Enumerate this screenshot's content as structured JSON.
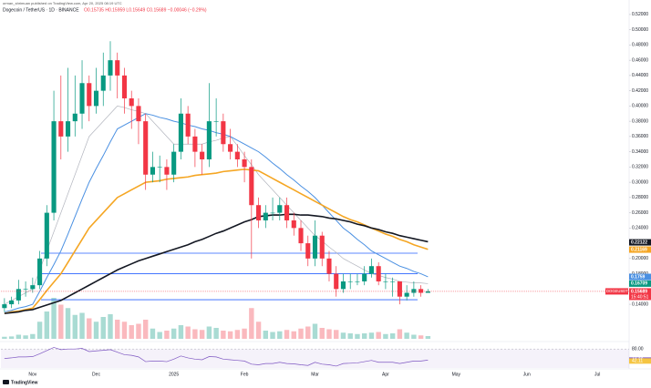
{
  "header": {
    "publisher": "orman_shrimuan published on TradingView.com, Apr 20, 2025 08:19 UTC",
    "symbol": "Dogecoin / TetherUS · 1D · BINANCE",
    "ohlc": "O0.15735 H0.15959 L0.15649 C0.15689 −0.00046 (−0.29%)"
  },
  "footer": {
    "brand": "TradingView"
  },
  "chart_data": {
    "type": "candlestick",
    "categories": [
      null,
      null,
      null,
      null,
      "Nov",
      null,
      null,
      null,
      null,
      null,
      null,
      null,
      null,
      "Dec",
      null,
      null,
      null,
      null,
      null,
      null,
      null,
      null,
      null,
      null,
      "2025",
      null,
      null,
      null,
      null,
      null,
      null,
      null,
      null,
      null,
      "Feb",
      null,
      null,
      null,
      null,
      null,
      null,
      null,
      null,
      null,
      "Mar",
      null,
      null,
      null,
      null,
      null,
      null,
      null,
      null,
      null,
      "Apr",
      null,
      null,
      null,
      null,
      null,
      null,
      null,
      null,
      null,
      "May",
      null,
      null,
      null,
      null,
      null,
      null,
      null,
      null,
      null,
      "Jun",
      null,
      null,
      null,
      null,
      null,
      null,
      null,
      null,
      null,
      "Jul",
      null,
      null,
      null,
      null
    ],
    "open": [
      0.135,
      0.14,
      0.145,
      0.16,
      0.16,
      0.165,
      0.2,
      0.26,
      0.38,
      0.36,
      0.38,
      0.39,
      0.43,
      0.4,
      0.42,
      0.44,
      0.46,
      0.44,
      0.41,
      0.4,
      0.38,
      0.31,
      0.32,
      0.32,
      0.31,
      0.34,
      0.39,
      0.36,
      0.34,
      0.33,
      0.38,
      0.38,
      0.35,
      0.34,
      0.33,
      0.32,
      0.27,
      0.25,
      0.26,
      0.26,
      0.27,
      0.25,
      0.24,
      0.22,
      0.2,
      0.23,
      0.2,
      0.18,
      0.16,
      0.17,
      0.17,
      0.17,
      0.18,
      0.19,
      0.17,
      0.17,
      0.17,
      0.15,
      0.155,
      0.16,
      0.155,
      null,
      null,
      null,
      null,
      null,
      null,
      null,
      null,
      null,
      null,
      null,
      null,
      null,
      null,
      null,
      null,
      null,
      null,
      null,
      null,
      null,
      null,
      null,
      null,
      null,
      null,
      null,
      null
    ],
    "high": [
      0.148,
      0.15,
      0.172,
      0.17,
      0.175,
      0.21,
      0.27,
      0.42,
      0.44,
      0.45,
      0.44,
      0.46,
      0.44,
      0.45,
      0.47,
      0.485,
      0.47,
      0.45,
      0.42,
      0.41,
      0.39,
      0.34,
      0.335,
      0.33,
      0.35,
      0.41,
      0.4,
      0.37,
      0.35,
      0.43,
      0.41,
      0.39,
      0.37,
      0.35,
      0.34,
      0.33,
      0.28,
      0.27,
      0.28,
      0.28,
      0.28,
      0.26,
      0.25,
      0.23,
      0.25,
      0.235,
      0.21,
      0.19,
      0.18,
      0.18,
      0.18,
      0.19,
      0.2,
      0.195,
      0.18,
      0.175,
      0.17,
      0.165,
      0.17,
      0.165,
      0.16,
      null,
      null,
      null,
      null,
      null,
      null,
      null,
      null,
      null,
      null,
      null,
      null,
      null,
      null,
      null,
      null,
      null,
      null,
      null,
      null,
      null,
      null,
      null,
      null,
      null,
      null,
      null,
      null
    ],
    "low": [
      0.13,
      0.135,
      0.14,
      0.15,
      0.155,
      0.16,
      0.19,
      0.25,
      0.33,
      0.34,
      0.36,
      0.37,
      0.38,
      0.39,
      0.4,
      0.42,
      0.41,
      0.39,
      0.37,
      0.35,
      0.29,
      0.3,
      0.3,
      0.29,
      0.3,
      0.33,
      0.35,
      0.32,
      0.31,
      0.32,
      0.36,
      0.34,
      0.33,
      0.32,
      0.3,
      0.2,
      0.24,
      0.24,
      0.25,
      0.25,
      0.24,
      0.23,
      0.21,
      0.19,
      0.19,
      0.19,
      0.17,
      0.15,
      0.155,
      0.16,
      0.165,
      0.165,
      0.175,
      0.165,
      0.16,
      0.15,
      0.14,
      0.145,
      0.15,
      0.15,
      0.155,
      null,
      null,
      null,
      null,
      null,
      null,
      null,
      null,
      null,
      null,
      null,
      null,
      null,
      null,
      null,
      null,
      null,
      null,
      null,
      null,
      null,
      null,
      null,
      null,
      null,
      null,
      null,
      null
    ],
    "close": [
      0.14,
      0.145,
      0.16,
      0.16,
      0.165,
      0.2,
      0.26,
      0.38,
      0.36,
      0.38,
      0.39,
      0.43,
      0.4,
      0.42,
      0.44,
      0.46,
      0.44,
      0.41,
      0.4,
      0.38,
      0.31,
      0.32,
      0.32,
      0.31,
      0.34,
      0.39,
      0.36,
      0.34,
      0.33,
      0.38,
      0.38,
      0.35,
      0.34,
      0.33,
      0.32,
      0.27,
      0.25,
      0.26,
      0.26,
      0.27,
      0.25,
      0.24,
      0.22,
      0.2,
      0.23,
      0.2,
      0.18,
      0.16,
      0.17,
      0.17,
      0.17,
      0.18,
      0.19,
      0.17,
      0.17,
      0.17,
      0.15,
      0.155,
      0.16,
      0.155,
      0.157,
      null,
      null,
      null,
      null,
      null,
      null,
      null,
      null,
      null,
      null,
      null,
      null,
      null,
      null,
      null,
      null,
      null,
      null,
      null,
      null,
      null,
      null,
      null,
      null,
      null,
      null,
      null,
      null
    ],
    "up_color": "#089981",
    "down_color": "#f23645",
    "moving_averages": [
      {
        "color": "#b2b5be",
        "width": 0.7,
        "values": [
          0.14,
          0.145,
          0.15,
          0.155,
          0.16,
          0.185,
          0.21,
          0.235,
          0.26,
          0.285,
          0.31,
          0.335,
          0.36,
          0.37,
          0.38,
          0.39,
          0.4,
          0.398,
          0.395,
          0.393,
          0.39,
          0.38,
          0.37,
          0.36,
          0.35,
          0.35,
          0.35,
          0.35,
          0.35,
          0.353,
          0.355,
          0.358,
          0.36,
          0.348,
          0.335,
          0.323,
          0.31,
          0.3,
          0.29,
          0.28,
          0.27,
          0.26,
          0.25,
          0.24,
          0.23,
          0.223,
          0.215,
          0.208,
          0.2,
          0.195,
          0.19,
          0.185,
          0.18,
          0.178,
          0.175,
          0.173,
          0.17,
          0.169,
          0.168,
          0.168,
          0.167,
          null,
          null,
          null,
          null,
          null,
          null,
          null,
          null,
          null,
          null,
          null,
          null,
          null,
          null,
          null,
          null,
          null,
          null,
          null,
          null,
          null,
          null,
          null,
          null,
          null,
          null,
          null,
          null
        ]
      },
      {
        "color": "#4a90e2",
        "width": 1,
        "values": [
          0.13,
          0.132,
          0.135,
          0.137,
          0.14,
          0.157,
          0.175,
          0.192,
          0.21,
          0.232,
          0.255,
          0.278,
          0.3,
          0.318,
          0.335,
          0.353,
          0.37,
          0.375,
          0.38,
          0.385,
          0.39,
          0.388,
          0.385,
          0.383,
          0.38,
          0.378,
          0.375,
          0.373,
          0.37,
          0.368,
          0.365,
          0.363,
          0.36,
          0.355,
          0.35,
          0.345,
          0.34,
          0.333,
          0.325,
          0.318,
          0.31,
          0.303,
          0.295,
          0.288,
          0.28,
          0.27,
          0.26,
          0.25,
          0.24,
          0.233,
          0.225,
          0.218,
          0.21,
          0.205,
          0.2,
          0.195,
          0.19,
          0.187,
          0.183,
          0.18,
          0.176,
          null,
          null,
          null,
          null,
          null,
          null,
          null,
          null,
          null,
          null,
          null,
          null,
          null,
          null,
          null,
          null,
          null,
          null,
          null,
          null,
          null,
          null,
          null,
          null,
          null,
          null,
          null,
          null
        ]
      },
      {
        "color": "#f5a623",
        "width": 1.6,
        "values": [
          0.128,
          0.13,
          0.131,
          0.133,
          0.135,
          0.146,
          0.158,
          0.169,
          0.18,
          0.195,
          0.21,
          0.225,
          0.24,
          0.25,
          0.26,
          0.27,
          0.28,
          0.285,
          0.29,
          0.295,
          0.3,
          0.301,
          0.302,
          0.304,
          0.305,
          0.306,
          0.307,
          0.309,
          0.31,
          0.311,
          0.312,
          0.314,
          0.315,
          0.316,
          0.317,
          0.316,
          0.315,
          0.31,
          0.305,
          0.3,
          0.295,
          0.29,
          0.285,
          0.28,
          0.275,
          0.27,
          0.265,
          0.26,
          0.255,
          0.251,
          0.248,
          0.244,
          0.24,
          0.236,
          0.232,
          0.229,
          0.225,
          0.222,
          0.218,
          0.215,
          0.212,
          null,
          null,
          null,
          null,
          null,
          null,
          null,
          null,
          null,
          null,
          null,
          null,
          null,
          null,
          null,
          null,
          null,
          null,
          null,
          null,
          null,
          null,
          null,
          null,
          null,
          null,
          null,
          null
        ]
      },
      {
        "color": "#131722",
        "width": 1.6,
        "values": [
          0.128,
          0.129,
          0.13,
          0.132,
          0.133,
          0.136,
          0.139,
          0.142,
          0.145,
          0.15,
          0.155,
          0.16,
          0.165,
          0.17,
          0.175,
          0.18,
          0.185,
          0.189,
          0.193,
          0.197,
          0.2,
          0.203,
          0.206,
          0.209,
          0.212,
          0.215,
          0.218,
          0.222,
          0.225,
          0.229,
          0.233,
          0.236,
          0.24,
          0.244,
          0.248,
          0.251,
          0.255,
          0.256,
          0.257,
          0.257,
          0.258,
          0.258,
          0.257,
          0.257,
          0.256,
          0.255,
          0.253,
          0.252,
          0.25,
          0.248,
          0.245,
          0.243,
          0.24,
          0.238,
          0.235,
          0.233,
          0.23,
          0.228,
          0.226,
          0.224,
          0.222,
          null,
          null,
          null,
          null,
          null,
          null,
          null,
          null,
          null,
          null,
          null,
          null,
          null,
          null,
          null,
          null,
          null,
          null,
          null,
          null,
          null,
          null,
          null,
          null,
          null,
          null,
          null,
          null
        ]
      }
    ],
    "levels": [
      0.207,
      0.18,
      0.146
    ],
    "level_color": "#2962ff",
    "volume": [
      300,
      350,
      600,
      500,
      700,
      2500,
      4000,
      6000,
      5000,
      4500,
      3500,
      3800,
      3000,
      2500,
      3200,
      3600,
      2800,
      2500,
      2000,
      2200,
      2800,
      1500,
      1000,
      1200,
      1500,
      2000,
      1800,
      1400,
      1300,
      1800,
      1600,
      1200,
      1100,
      1300,
      1500,
      4500,
      2500,
      1200,
      1000,
      1100,
      1300,
      1100,
      1500,
      1800,
      2200,
      1600,
      1400,
      1300,
      900,
      800,
      700,
      800,
      900,
      1000,
      700,
      800,
      1400,
      900,
      600,
      500,
      400,
      null,
      null,
      null,
      null,
      null,
      null,
      null,
      null,
      null,
      null,
      null,
      null,
      null,
      null,
      null,
      null,
      null,
      null,
      null,
      null,
      null,
      null,
      null,
      null,
      null,
      null,
      null,
      null
    ],
    "rsi": [
      50,
      52,
      55,
      55,
      56,
      65,
      75,
      85,
      78,
      80,
      80,
      82,
      72,
      74,
      76,
      78,
      70,
      62,
      60,
      55,
      40,
      42,
      42,
      40,
      48,
      58,
      52,
      48,
      46,
      56,
      55,
      48,
      46,
      44,
      42,
      32,
      30,
      34,
      34,
      38,
      34,
      33,
      30,
      28,
      38,
      32,
      30,
      26,
      34,
      35,
      36,
      40,
      44,
      38,
      38,
      38,
      34,
      38,
      42,
      42,
      44.82,
      null,
      null,
      null,
      null,
      null,
      null,
      null,
      null,
      null,
      null,
      null,
      null,
      null,
      null,
      null,
      null,
      null,
      null,
      null,
      null,
      null,
      null,
      null,
      null,
      null,
      null,
      null,
      null
    ],
    "rsi_color": "#7e57c2",
    "rsi_ylim": [
      20,
      95
    ],
    "rsi_ticks": [
      {
        "value": 80,
        "label": "80.00"
      },
      {
        "value": 44.82,
        "label": "44.82"
      },
      {
        "value": 42.11,
        "label": "42.11"
      }
    ],
    "ylim": [
      0.115,
      0.539
    ],
    "yticks": [
      {
        "value": 0.52,
        "label": "0.52000"
      },
      {
        "value": 0.5,
        "label": "0.50000"
      },
      {
        "value": 0.48,
        "label": "0.48000"
      },
      {
        "value": 0.46,
        "label": "0.46000"
      },
      {
        "value": 0.44,
        "label": "0.44000"
      },
      {
        "value": 0.42,
        "label": "0.42000"
      },
      {
        "value": 0.4,
        "label": "0.40000"
      },
      {
        "value": 0.38,
        "label": "0.38000"
      },
      {
        "value": 0.36,
        "label": "0.36000"
      },
      {
        "value": 0.34,
        "label": "0.34000"
      },
      {
        "value": 0.32,
        "label": "0.32000"
      },
      {
        "value": 0.3,
        "label": "0.30000"
      },
      {
        "value": 0.28,
        "label": "0.28000"
      },
      {
        "value": 0.26,
        "label": "0.26000"
      },
      {
        "value": 0.24,
        "label": "0.24000"
      },
      {
        "value": 0.2,
        "label": "0.20000"
      },
      {
        "value": 0.18,
        "label": "0.18000"
      },
      {
        "value": 0.14,
        "label": "0.14000"
      }
    ],
    "tags": [
      {
        "value": 0.22122,
        "color": "#131722"
      },
      {
        "value": 0.21169,
        "color": "#f5a623"
      },
      {
        "value": 0.1759,
        "color": "#4a90e2"
      },
      {
        "value": 0.16709,
        "color": "#089981"
      }
    ],
    "price_tag": {
      "symbol": "DOGEUSDT",
      "value": 0.15689,
      "countdown": "15:40:51",
      "color": "#f23645"
    }
  }
}
